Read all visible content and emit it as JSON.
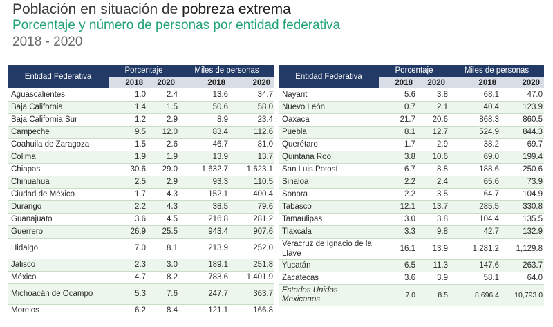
{
  "header": {
    "title_prefix": "Población en situación de ",
    "title_emphasis": "pobreza extrema",
    "subtitle": "Porcentaje y número de personas por entidad federativa",
    "years": "2018 - 2020"
  },
  "columns": {
    "entity": "Entidad Federativa",
    "percent_group": "Porcentaje",
    "people_group": "Miles de personas",
    "y2018": "2018",
    "y2020": "2020"
  },
  "left_rows": [
    {
      "name": "Aguascalientes",
      "p2018": "1.0",
      "p2020": "2.4",
      "m2018": "13.6",
      "m2020": "34.7"
    },
    {
      "name": "Baja California",
      "p2018": "1.4",
      "p2020": "1.5",
      "m2018": "50.6",
      "m2020": "58.0"
    },
    {
      "name": "Baja California Sur",
      "p2018": "1.2",
      "p2020": "2.9",
      "m2018": "8.9",
      "m2020": "23.4"
    },
    {
      "name": "Campeche",
      "p2018": "9.5",
      "p2020": "12.0",
      "m2018": "83.4",
      "m2020": "112.6"
    },
    {
      "name": "Coahuila de Zaragoza",
      "p2018": "1.5",
      "p2020": "2.6",
      "m2018": "46.7",
      "m2020": "81.0"
    },
    {
      "name": "Colima",
      "p2018": "1.9",
      "p2020": "1.9",
      "m2018": "13.9",
      "m2020": "13.7"
    },
    {
      "name": "Chiapas",
      "p2018": "30.6",
      "p2020": "29.0",
      "m2018": "1,632.7",
      "m2020": "1,623.1"
    },
    {
      "name": "Chihuahua",
      "p2018": "2.5",
      "p2020": "2.9",
      "m2018": "93.3",
      "m2020": "110.5"
    },
    {
      "name": "Ciudad de México",
      "p2018": "1.7",
      "p2020": "4.3",
      "m2018": "152.1",
      "m2020": "400.4"
    },
    {
      "name": "Durango",
      "p2018": "2.2",
      "p2020": "4.3",
      "m2018": "38.5",
      "m2020": "79.6"
    },
    {
      "name": "Guanajuato",
      "p2018": "3.6",
      "p2020": "4.5",
      "m2018": "216.8",
      "m2020": "281.2"
    },
    {
      "name": "Guerrero",
      "p2018": "26.9",
      "p2020": "25.5",
      "m2018": "943.4",
      "m2020": "907.6"
    },
    {
      "name": "Hidalgo",
      "p2018": "7.0",
      "p2020": "8.1",
      "m2018": "213.9",
      "m2020": "252.0"
    },
    {
      "name": "Jalisco",
      "p2018": "2.3",
      "p2020": "3.0",
      "m2018": "189.1",
      "m2020": "251.8"
    },
    {
      "name": "México",
      "p2018": "4.7",
      "p2020": "8.2",
      "m2018": "783.6",
      "m2020": "1,401.9"
    },
    {
      "name": "Michoacán de Ocampo",
      "p2018": "5.3",
      "p2020": "7.6",
      "m2018": "247.7",
      "m2020": "363.7"
    },
    {
      "name": "Morelos",
      "p2018": "6.2",
      "p2020": "8.4",
      "m2018": "121.1",
      "m2020": "166.8"
    }
  ],
  "right_rows": [
    {
      "name": "Nayarit",
      "p2018": "5.6",
      "p2020": "3.8",
      "m2018": "68.1",
      "m2020": "47.0"
    },
    {
      "name": "Nuevo León",
      "p2018": "0.7",
      "p2020": "2.1",
      "m2018": "40.4",
      "m2020": "123.9"
    },
    {
      "name": "Oaxaca",
      "p2018": "21.7",
      "p2020": "20.6",
      "m2018": "868.3",
      "m2020": "860.5"
    },
    {
      "name": "Puebla",
      "p2018": "8.1",
      "p2020": "12.7",
      "m2018": "524.9",
      "m2020": "844.3"
    },
    {
      "name": "Querétaro",
      "p2018": "1.7",
      "p2020": "2.9",
      "m2018": "38.2",
      "m2020": "69.7"
    },
    {
      "name": "Quintana Roo",
      "p2018": "3.8",
      "p2020": "10.6",
      "m2018": "69.0",
      "m2020": "199.4"
    },
    {
      "name": "San Luis Potosí",
      "p2018": "6.7",
      "p2020": "8.8",
      "m2018": "188.6",
      "m2020": "250.6"
    },
    {
      "name": "Sinaloa",
      "p2018": "2.2",
      "p2020": "2.4",
      "m2018": "65.6",
      "m2020": "73.9"
    },
    {
      "name": "Sonora",
      "p2018": "2.2",
      "p2020": "3.5",
      "m2018": "64.7",
      "m2020": "104.9"
    },
    {
      "name": "Tabasco",
      "p2018": "12.1",
      "p2020": "13.7",
      "m2018": "285.5",
      "m2020": "330.8"
    },
    {
      "name": "Tamaulipas",
      "p2018": "3.0",
      "p2020": "3.8",
      "m2018": "104.4",
      "m2020": "135.5"
    },
    {
      "name": "Tlaxcala",
      "p2018": "3.3",
      "p2020": "9.8",
      "m2018": "42.7",
      "m2020": "132.9"
    },
    {
      "name": "Veracruz de Ignacio de la Llave",
      "p2018": "16.1",
      "p2020": "13.9",
      "m2018": "1,281.2",
      "m2020": "1,129.8"
    },
    {
      "name": "Yucatán",
      "p2018": "6.5",
      "p2020": "11.3",
      "m2018": "147.6",
      "m2020": "263.7"
    },
    {
      "name": "Zacatecas",
      "p2018": "3.6",
      "p2020": "3.9",
      "m2018": "58.1",
      "m2020": "64.0"
    }
  ],
  "total": {
    "name": "Estados Unidos Mexicanos",
    "p2018": "7.0",
    "p2020": "8.5",
    "m2018": "8,696.4",
    "m2020": "10,793.0"
  }
}
